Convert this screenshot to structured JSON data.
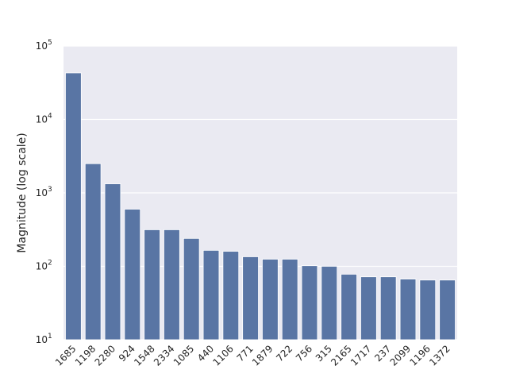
{
  "chart_data": {
    "type": "bar",
    "title": "",
    "xlabel": "",
    "ylabel": "Magnitude (log scale)",
    "yscale": "log",
    "ylim": [
      10,
      100000
    ],
    "y_ticks": [
      {
        "value": 10,
        "base": "10",
        "exp": "1"
      },
      {
        "value": 100,
        "base": "10",
        "exp": "2"
      },
      {
        "value": 1000,
        "base": "10",
        "exp": "3"
      },
      {
        "value": 10000,
        "base": "10",
        "exp": "4"
      },
      {
        "value": 100000,
        "base": "10",
        "exp": "5"
      }
    ],
    "grid": true,
    "bar_color": "#5975a4",
    "background_color": "#eaeaf2",
    "categories": [
      "1685",
      "1198",
      "2280",
      "924",
      "1548",
      "2334",
      "1085",
      "440",
      "1106",
      "771",
      "1879",
      "722",
      "756",
      "315",
      "2165",
      "1717",
      "237",
      "2099",
      "1196",
      "1372"
    ],
    "values": [
      43000,
      2500,
      1330,
      600,
      315,
      315,
      240,
      165,
      160,
      135,
      125,
      125,
      102,
      100,
      78,
      72,
      72,
      67,
      65,
      65
    ]
  }
}
